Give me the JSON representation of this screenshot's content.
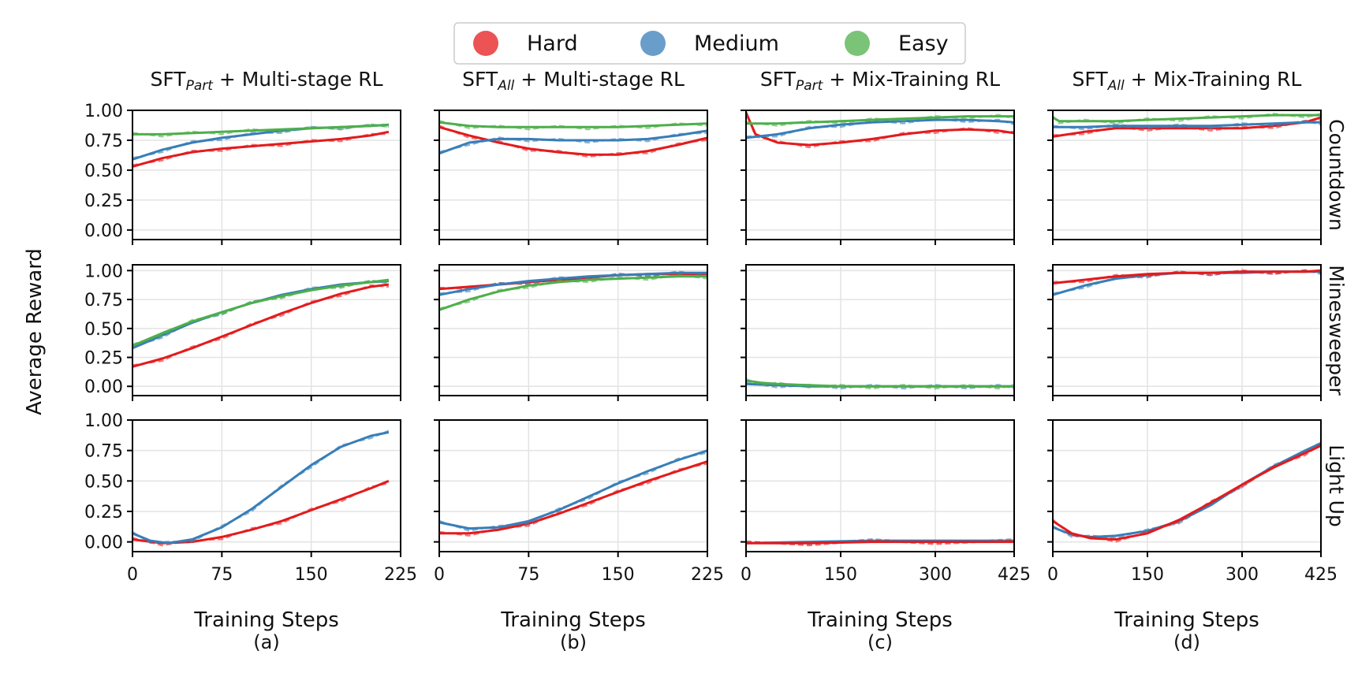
{
  "chart_data": {
    "type": "line",
    "ylabel": "Average Reward",
    "legend": {
      "placement": "top-center",
      "entries": [
        {
          "name": "Hard",
          "color": "#e41a1c"
        },
        {
          "name": "Medium",
          "color": "#377eb8"
        },
        {
          "name": "Easy",
          "color": "#4daf4a"
        }
      ]
    },
    "columns": [
      {
        "title_base": "SFT",
        "title_sub": "Part",
        "title_rest": " + Multi-stage RL",
        "xlabel": "Training Steps",
        "sublabel": "(a)",
        "xlim": [
          0,
          225
        ],
        "xticks": [
          0,
          75,
          150,
          225
        ]
      },
      {
        "title_base": "SFT",
        "title_sub": "All",
        "title_rest": " + Multi-stage RL",
        "xlabel": "Training Steps",
        "sublabel": "(b)",
        "xlim": [
          0,
          225
        ],
        "xticks": [
          0,
          75,
          150,
          225
        ]
      },
      {
        "title_base": "SFT",
        "title_sub": "Part",
        "title_rest": " + Mix-Training RL",
        "xlabel": "Training Steps",
        "sublabel": "(c)",
        "xlim": [
          0,
          425
        ],
        "xticks": [
          0,
          150,
          300,
          425
        ]
      },
      {
        "title_base": "SFT",
        "title_sub": "All",
        "title_rest": " + Mix-Training RL",
        "xlabel": "Training Steps",
        "sublabel": "(d)",
        "xlim": [
          0,
          425
        ],
        "xticks": [
          0,
          150,
          300,
          425
        ]
      }
    ],
    "rows": [
      {
        "title": "Countdown",
        "ylim": [
          -0.08,
          1.0
        ],
        "yticks": [
          0.0,
          0.25,
          0.5,
          0.75,
          1.0
        ],
        "ytick_labels": [
          "0.00",
          "0.25",
          "0.50",
          "0.75",
          "1.00"
        ]
      },
      {
        "title": "Minesweeper",
        "ylim": [
          -0.08,
          1.05
        ],
        "yticks": [
          0.0,
          0.25,
          0.5,
          0.75,
          1.0
        ],
        "ytick_labels": [
          "0.00",
          "0.25",
          "0.50",
          "0.75",
          "1.00"
        ]
      },
      {
        "title": "Light Up",
        "ylim": [
          -0.08,
          1.0
        ],
        "yticks": [
          0.0,
          0.25,
          0.5,
          0.75,
          1.0
        ],
        "ytick_labels": [
          "0.00",
          "0.25",
          "0.50",
          "0.75",
          "1.00"
        ]
      }
    ],
    "grid": true,
    "panels": [
      {
        "row": 0,
        "col": 0,
        "series": [
          {
            "name": "Hard",
            "x": [
              0,
              25,
              50,
              75,
              100,
              125,
              150,
              175,
              200,
              215
            ],
            "y": [
              0.53,
              0.6,
              0.65,
              0.68,
              0.7,
              0.72,
              0.74,
              0.76,
              0.79,
              0.82
            ]
          },
          {
            "name": "Medium",
            "x": [
              0,
              25,
              50,
              75,
              100,
              125,
              150,
              175,
              200,
              215
            ],
            "y": [
              0.59,
              0.67,
              0.73,
              0.77,
              0.8,
              0.83,
              0.85,
              0.86,
              0.87,
              0.88
            ]
          },
          {
            "name": "Easy",
            "x": [
              0,
              25,
              50,
              75,
              100,
              125,
              150,
              175,
              200,
              215
            ],
            "y": [
              0.8,
              0.8,
              0.81,
              0.82,
              0.83,
              0.84,
              0.85,
              0.86,
              0.87,
              0.88
            ]
          }
        ]
      },
      {
        "row": 0,
        "col": 1,
        "series": [
          {
            "name": "Hard",
            "x": [
              0,
              25,
              50,
              75,
              100,
              125,
              150,
              175,
              200,
              225
            ],
            "y": [
              0.86,
              0.79,
              0.73,
              0.68,
              0.65,
              0.63,
              0.63,
              0.66,
              0.71,
              0.77
            ]
          },
          {
            "name": "Medium",
            "x": [
              0,
              25,
              50,
              75,
              100,
              125,
              150,
              175,
              200,
              225
            ],
            "y": [
              0.64,
              0.73,
              0.76,
              0.76,
              0.75,
              0.75,
              0.75,
              0.76,
              0.79,
              0.83
            ]
          },
          {
            "name": "Easy",
            "x": [
              0,
              25,
              50,
              75,
              100,
              125,
              150,
              175,
              200,
              225
            ],
            "y": [
              0.9,
              0.87,
              0.86,
              0.86,
              0.86,
              0.86,
              0.86,
              0.87,
              0.88,
              0.89
            ]
          }
        ]
      },
      {
        "row": 0,
        "col": 2,
        "series": [
          {
            "name": "Hard",
            "x": [
              0,
              15,
              50,
              100,
              150,
              200,
              250,
              300,
              350,
              400,
              425
            ],
            "y": [
              0.98,
              0.8,
              0.73,
              0.71,
              0.73,
              0.76,
              0.8,
              0.83,
              0.84,
              0.83,
              0.81
            ]
          },
          {
            "name": "Medium",
            "x": [
              0,
              50,
              100,
              150,
              200,
              250,
              300,
              350,
              400,
              425
            ],
            "y": [
              0.77,
              0.8,
              0.85,
              0.88,
              0.9,
              0.91,
              0.92,
              0.92,
              0.91,
              0.9
            ]
          },
          {
            "name": "Easy",
            "x": [
              0,
              50,
              100,
              150,
              200,
              250,
              300,
              350,
              400,
              425
            ],
            "y": [
              0.89,
              0.89,
              0.9,
              0.91,
              0.92,
              0.93,
              0.94,
              0.95,
              0.95,
              0.95
            ]
          }
        ]
      },
      {
        "row": 0,
        "col": 3,
        "series": [
          {
            "name": "Hard",
            "x": [
              0,
              50,
              100,
              150,
              200,
              250,
              300,
              350,
              400,
              425
            ],
            "y": [
              0.78,
              0.82,
              0.85,
              0.85,
              0.85,
              0.85,
              0.85,
              0.87,
              0.9,
              0.94
            ]
          },
          {
            "name": "Medium",
            "x": [
              0,
              50,
              100,
              150,
              200,
              250,
              300,
              350,
              400,
              425
            ],
            "y": [
              0.86,
              0.86,
              0.87,
              0.87,
              0.87,
              0.87,
              0.88,
              0.89,
              0.9,
              0.9
            ]
          },
          {
            "name": "Easy",
            "x": [
              0,
              10,
              50,
              100,
              150,
              200,
              250,
              300,
              350,
              400,
              425
            ],
            "y": [
              0.94,
              0.91,
              0.91,
              0.91,
              0.92,
              0.93,
              0.94,
              0.95,
              0.96,
              0.96,
              0.96
            ]
          }
        ]
      },
      {
        "row": 1,
        "col": 0,
        "series": [
          {
            "name": "Hard",
            "x": [
              0,
              25,
              50,
              75,
              100,
              125,
              150,
              175,
              200,
              215
            ],
            "y": [
              0.17,
              0.24,
              0.33,
              0.43,
              0.53,
              0.63,
              0.72,
              0.8,
              0.86,
              0.88
            ]
          },
          {
            "name": "Medium",
            "x": [
              0,
              25,
              50,
              75,
              100,
              125,
              150,
              175,
              200,
              215
            ],
            "y": [
              0.33,
              0.44,
              0.55,
              0.64,
              0.72,
              0.79,
              0.84,
              0.88,
              0.9,
              0.91
            ]
          },
          {
            "name": "Easy",
            "x": [
              0,
              25,
              50,
              75,
              100,
              125,
              150,
              175,
              200,
              215
            ],
            "y": [
              0.35,
              0.46,
              0.56,
              0.64,
              0.72,
              0.78,
              0.83,
              0.87,
              0.9,
              0.92
            ]
          }
        ]
      },
      {
        "row": 1,
        "col": 1,
        "series": [
          {
            "name": "Hard",
            "x": [
              0,
              25,
              50,
              75,
              100,
              125,
              150,
              175,
              200,
              225
            ],
            "y": [
              0.84,
              0.86,
              0.88,
              0.9,
              0.92,
              0.94,
              0.96,
              0.97,
              0.97,
              0.97
            ]
          },
          {
            "name": "Medium",
            "x": [
              0,
              25,
              50,
              75,
              100,
              125,
              150,
              175,
              200,
              225
            ],
            "y": [
              0.79,
              0.84,
              0.88,
              0.91,
              0.93,
              0.95,
              0.96,
              0.97,
              0.98,
              0.98
            ]
          },
          {
            "name": "Easy",
            "x": [
              0,
              25,
              50,
              75,
              100,
              125,
              150,
              175,
              200,
              225
            ],
            "y": [
              0.66,
              0.75,
              0.82,
              0.87,
              0.9,
              0.92,
              0.93,
              0.94,
              0.95,
              0.95
            ]
          }
        ]
      },
      {
        "row": 1,
        "col": 2,
        "series": [
          {
            "name": "Medium",
            "x": [
              0,
              50,
              100,
              150,
              200,
              250,
              300,
              350,
              400,
              425
            ],
            "y": [
              0.02,
              0.01,
              0.0,
              0.0,
              0.0,
              0.0,
              0.0,
              0.0,
              0.0,
              0.0
            ]
          },
          {
            "name": "Easy",
            "x": [
              0,
              25,
              50,
              100,
              150,
              200,
              250,
              300,
              350,
              400,
              425
            ],
            "y": [
              0.05,
              0.03,
              0.02,
              0.01,
              0.0,
              0.0,
              0.0,
              0.0,
              0.0,
              0.0,
              0.0
            ]
          }
        ]
      },
      {
        "row": 1,
        "col": 3,
        "series": [
          {
            "name": "Medium",
            "x": [
              0,
              50,
              100,
              150,
              200,
              250,
              300,
              350,
              400,
              425
            ],
            "y": [
              0.79,
              0.87,
              0.93,
              0.96,
              0.98,
              0.98,
              0.98,
              0.99,
              0.99,
              0.99
            ]
          },
          {
            "name": "Hard",
            "x": [
              0,
              50,
              100,
              150,
              200,
              250,
              300,
              350,
              400,
              425
            ],
            "y": [
              0.89,
              0.92,
              0.95,
              0.97,
              0.98,
              0.98,
              0.99,
              0.99,
              0.99,
              1.0
            ]
          }
        ]
      },
      {
        "row": 2,
        "col": 0,
        "series": [
          {
            "name": "Hard",
            "x": [
              0,
              25,
              50,
              75,
              100,
              125,
              150,
              175,
              200,
              215
            ],
            "y": [
              0.02,
              -0.01,
              0.0,
              0.04,
              0.1,
              0.17,
              0.26,
              0.35,
              0.44,
              0.5
            ]
          },
          {
            "name": "Medium",
            "x": [
              0,
              15,
              30,
              50,
              75,
              100,
              125,
              150,
              175,
              200,
              215
            ],
            "y": [
              0.07,
              0.01,
              -0.01,
              0.02,
              0.12,
              0.27,
              0.45,
              0.63,
              0.78,
              0.87,
              0.9
            ]
          }
        ]
      },
      {
        "row": 2,
        "col": 1,
        "series": [
          {
            "name": "Hard",
            "x": [
              0,
              25,
              50,
              75,
              100,
              125,
              150,
              175,
              200,
              225
            ],
            "y": [
              0.07,
              0.07,
              0.1,
              0.15,
              0.23,
              0.32,
              0.41,
              0.5,
              0.58,
              0.66
            ]
          },
          {
            "name": "Medium",
            "x": [
              0,
              25,
              50,
              75,
              100,
              125,
              150,
              175,
              200,
              225
            ],
            "y": [
              0.16,
              0.11,
              0.12,
              0.17,
              0.26,
              0.37,
              0.48,
              0.58,
              0.67,
              0.75
            ]
          }
        ]
      },
      {
        "row": 2,
        "col": 2,
        "series": [
          {
            "name": "Medium",
            "x": [
              0,
              100,
              200,
              300,
              425
            ],
            "y": [
              -0.01,
              0.0,
              0.01,
              0.01,
              0.01
            ]
          },
          {
            "name": "Hard",
            "x": [
              0,
              100,
              200,
              300,
              425
            ],
            "y": [
              -0.01,
              -0.01,
              0.0,
              0.0,
              0.0
            ]
          }
        ]
      },
      {
        "row": 2,
        "col": 3,
        "series": [
          {
            "name": "Medium",
            "x": [
              0,
              30,
              60,
              100,
              150,
              200,
              250,
              300,
              350,
              400,
              425
            ],
            "y": [
              0.12,
              0.06,
              0.04,
              0.05,
              0.09,
              0.17,
              0.3,
              0.47,
              0.62,
              0.75,
              0.81
            ]
          },
          {
            "name": "Hard",
            "x": [
              0,
              30,
              60,
              100,
              150,
              200,
              250,
              300,
              350,
              400,
              425
            ],
            "y": [
              0.17,
              0.07,
              0.03,
              0.02,
              0.07,
              0.18,
              0.32,
              0.47,
              0.61,
              0.73,
              0.79
            ]
          }
        ]
      }
    ]
  }
}
